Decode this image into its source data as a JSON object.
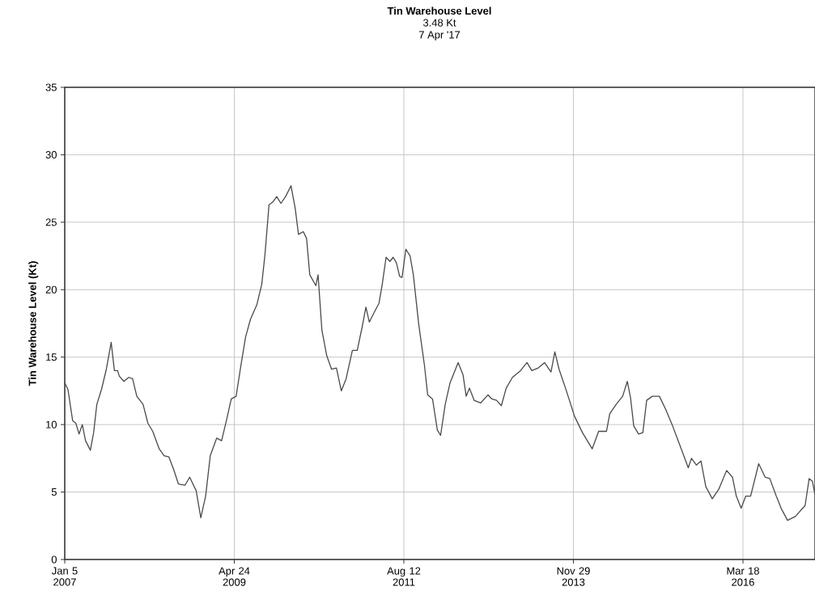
{
  "chart_data": {
    "type": "line",
    "title": "Tin Warehouse Level",
    "subtitle": "3.48 Kt",
    "annotations": [
      "7 Apr '17"
    ],
    "ylabel": "Tin Warehouse Level (Kt)",
    "x": [
      "2007-01-05",
      "2007-01-21",
      "2007-02-13",
      "2007-03-01",
      "2007-03-17",
      "2007-04-02",
      "2007-04-18",
      "2007-05-12",
      "2007-05-28",
      "2007-06-13",
      "2007-07-06",
      "2007-07-30",
      "2007-08-23",
      "2007-09-08",
      "2007-09-24",
      "2007-10-02",
      "2007-10-25",
      "2007-11-18",
      "2007-12-07",
      "2007-12-28",
      "2008-01-28",
      "2008-02-21",
      "2008-03-16",
      "2008-04-17",
      "2008-05-11",
      "2008-06-04",
      "2008-06-27",
      "2008-07-21",
      "2008-08-22",
      "2008-09-15",
      "2008-10-17",
      "2008-11-09",
      "2008-12-03",
      "2008-12-26",
      "2009-01-27",
      "2009-02-20",
      "2009-03-16",
      "2009-04-09",
      "2009-05-03",
      "2009-05-27",
      "2009-06-19",
      "2009-07-13",
      "2009-08-14",
      "2009-09-07",
      "2009-09-23",
      "2009-10-13",
      "2009-11-01",
      "2009-11-20",
      "2009-12-11",
      "2010-01-03",
      "2010-01-30",
      "2010-02-20",
      "2010-03-08",
      "2010-04-01",
      "2010-04-17",
      "2010-05-03",
      "2010-06-02",
      "2010-06-13",
      "2010-07-02",
      "2010-07-26",
      "2010-08-19",
      "2010-09-12",
      "2010-10-06",
      "2010-10-30",
      "2010-11-30",
      "2010-12-24",
      "2011-01-17",
      "2011-02-05",
      "2011-02-22",
      "2011-03-21",
      "2011-04-11",
      "2011-04-27",
      "2011-05-16",
      "2011-06-04",
      "2011-06-20",
      "2011-07-06",
      "2011-07-22",
      "2011-08-03",
      "2011-08-22",
      "2011-09-12",
      "2011-09-28",
      "2011-10-25",
      "2011-11-22",
      "2011-12-08",
      "2012-01-01",
      "2012-01-25",
      "2012-02-10",
      "2012-03-04",
      "2012-03-28",
      "2012-04-13",
      "2012-05-07",
      "2012-05-31",
      "2012-06-16",
      "2012-07-02",
      "2012-07-25",
      "2012-08-26",
      "2012-10-02",
      "2012-10-21",
      "2012-11-13",
      "2012-12-07",
      "2012-12-31",
      "2013-01-31",
      "2013-03-12",
      "2013-04-13",
      "2013-05-07",
      "2013-06-08",
      "2013-07-09",
      "2013-08-10",
      "2013-08-29",
      "2013-09-19",
      "2013-10-21",
      "2013-12-05",
      "2014-01-13",
      "2014-03-02",
      "2014-04-03",
      "2014-05-12",
      "2014-05-28",
      "2014-06-29",
      "2014-07-31",
      "2014-08-23",
      "2014-09-08",
      "2014-09-24",
      "2014-10-18",
      "2014-11-08",
      "2014-11-27",
      "2014-12-25",
      "2015-01-29",
      "2015-03-02",
      "2015-04-02",
      "2015-05-12",
      "2015-06-21",
      "2015-07-07",
      "2015-07-31",
      "2015-08-23",
      "2015-09-16",
      "2015-10-18",
      "2015-11-19",
      "2015-12-28",
      "2016-01-26",
      "2016-02-14",
      "2016-03-09",
      "2016-04-01",
      "2016-04-25",
      "2016-06-04",
      "2016-07-06",
      "2016-07-29",
      "2016-08-30",
      "2016-09-23",
      "2016-10-25",
      "2016-12-03",
      "2017-01-20",
      "2017-02-09",
      "2017-02-25",
      "2017-03-10"
    ],
    "values": [
      13.1,
      12.6,
      10.3,
      10.1,
      9.3,
      10.0,
      8.8,
      8.1,
      9.4,
      11.5,
      12.6,
      14.1,
      16.1,
      14.0,
      14.0,
      13.6,
      13.2,
      13.5,
      13.4,
      12.1,
      11.5,
      10.1,
      9.5,
      8.2,
      7.7,
      7.6,
      6.7,
      5.6,
      5.5,
      6.1,
      5.1,
      3.1,
      4.7,
      7.7,
      9.0,
      8.8,
      10.3,
      11.9,
      12.1,
      14.4,
      16.5,
      17.8,
      18.9,
      20.4,
      22.6,
      26.3,
      26.5,
      26.9,
      26.4,
      26.9,
      27.7,
      26.0,
      24.1,
      24.3,
      23.8,
      21.1,
      20.3,
      21.1,
      17.0,
      15.1,
      14.1,
      14.2,
      12.5,
      13.4,
      15.5,
      15.5,
      17.2,
      18.7,
      17.6,
      18.4,
      19.0,
      20.4,
      22.4,
      22.1,
      22.4,
      22.0,
      21.0,
      20.9,
      23.0,
      22.5,
      21.1,
      17.4,
      14.4,
      12.2,
      11.9,
      9.6,
      9.2,
      11.5,
      13.1,
      13.7,
      14.6,
      13.7,
      12.1,
      12.7,
      11.8,
      11.6,
      12.2,
      11.9,
      11.8,
      11.4,
      12.7,
      13.5,
      14.0,
      14.6,
      14.0,
      14.2,
      14.6,
      13.9,
      15.4,
      14.1,
      12.7,
      10.6,
      9.4,
      8.2,
      9.5,
      9.5,
      10.8,
      11.5,
      12.1,
      13.2,
      12.0,
      9.9,
      9.3,
      9.4,
      11.8,
      12.1,
      12.1,
      11.1,
      10.0,
      8.4,
      6.8,
      7.5,
      7.0,
      7.3,
      5.4,
      4.5,
      5.2,
      6.6,
      6.1,
      4.7,
      3.8,
      4.7,
      4.7,
      7.1,
      6.1,
      6.0,
      4.7,
      3.8,
      2.9,
      3.2,
      4.0,
      6.0,
      5.8,
      4.8
    ],
    "color": "#4a4a4a",
    "xlim": [
      "2007-01-05",
      "2017-03-10"
    ],
    "xticks": [
      {
        "value": "2007-01-05",
        "label": "Jan 5 2007"
      },
      {
        "value": "2009-04-24",
        "label": "Apr 24 2009"
      },
      {
        "value": "2011-08-12",
        "label": "Aug 12 2011"
      },
      {
        "value": "2013-11-29",
        "label": "Nov 29 2013"
      },
      {
        "value": "2016-03-18",
        "label": "Mar 18 2016"
      }
    ],
    "ylim": [
      0,
      35
    ],
    "yticks": [
      0,
      5,
      10,
      15,
      20,
      25,
      30,
      35
    ],
    "grid": true
  }
}
